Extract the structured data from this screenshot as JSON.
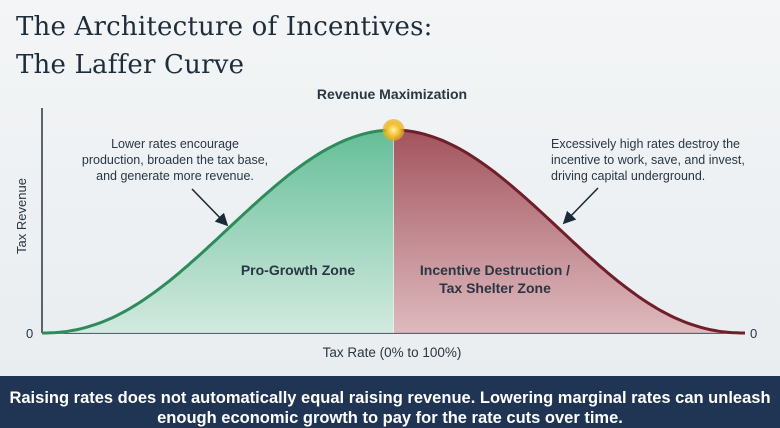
{
  "title_line1": "The Architecture of Incentives:",
  "title_line2": "The Laffer Curve",
  "peak_label": "Revenue Maximization",
  "left_note": [
    "Lower rates encourage",
    "production, broaden the tax base,",
    "and generate more revenue."
  ],
  "right_note": [
    "Excessively high rates destroy the",
    "incentive to work, save, and invest,",
    "driving capital underground."
  ],
  "zone_left": "Pro-Growth Zone",
  "zone_right": [
    "Incentive Destruction /",
    "Tax Shelter Zone"
  ],
  "footer": "Raising rates does not automatically equal raising revenue. Lowering marginal rates can unleash enough economic growth to pay for the rate cuts over time.",
  "colors": {
    "green": "#58b890",
    "red": "#a8525c",
    "peak": "#f2c12e",
    "footer_bg": "#1f3553"
  },
  "chart_data": {
    "type": "area",
    "title": "The Architecture of Incentives: The Laffer Curve",
    "xlabel": "Tax Rate (0% to 100%)",
    "ylabel": "Tax Revenue",
    "x_tick_labels": [
      "0"
    ],
    "y_end_labels": [
      "0",
      "0"
    ],
    "xlim": [
      0,
      100
    ],
    "ylim": [
      0,
      1
    ],
    "x": [
      0,
      10,
      20,
      30,
      40,
      50,
      60,
      70,
      80,
      90,
      100
    ],
    "values": [
      0,
      0.05,
      0.25,
      0.58,
      0.88,
      1.0,
      0.88,
      0.58,
      0.25,
      0.05,
      0
    ],
    "peak_x": 50,
    "grid": false
  }
}
